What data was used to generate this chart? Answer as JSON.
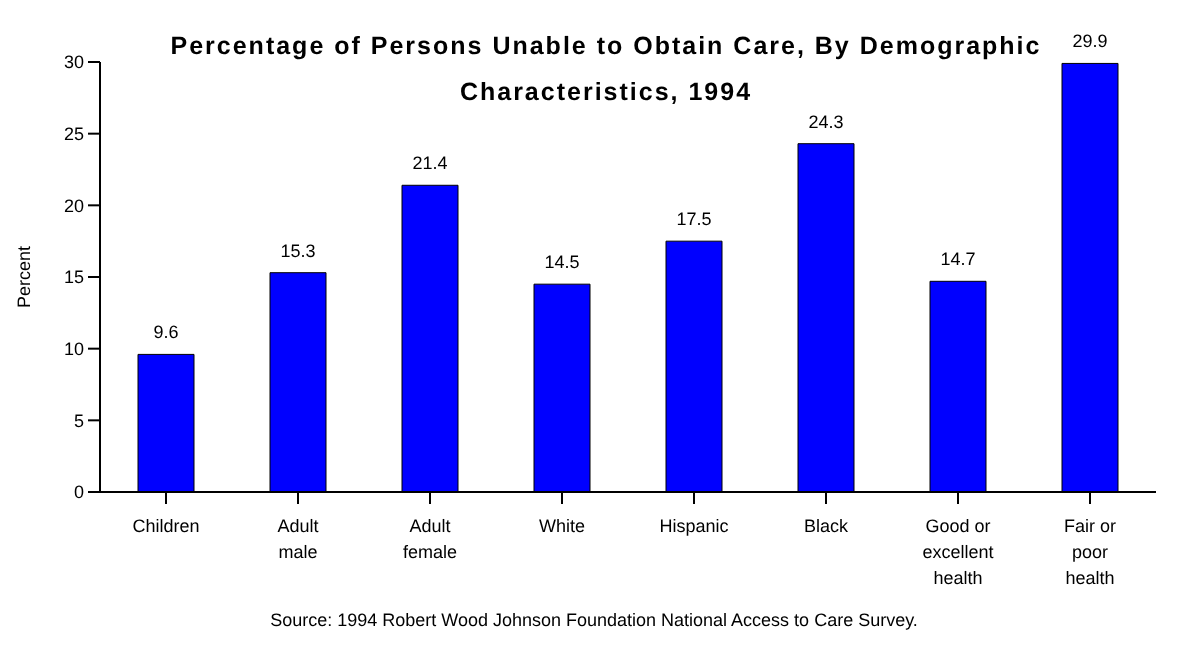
{
  "chart_data": {
    "type": "bar",
    "title": "Percentage of Persons Unable to Obtain Care, By Demographic Characteristics, 1994",
    "ylabel": "Percent",
    "categories": [
      "Children",
      "Adult male",
      "Adult female",
      "White",
      "Hispanic",
      "Black",
      "Good or excellent health",
      "Fair or poor health"
    ],
    "values": [
      9.6,
      15.3,
      21.4,
      14.5,
      17.5,
      24.3,
      14.7,
      29.9
    ],
    "color": "#0000ff",
    "ylim": [
      0,
      30
    ],
    "yticks": [
      0,
      5,
      10,
      15,
      20,
      25,
      30
    ],
    "grid": false,
    "legend": false,
    "data_labels": true,
    "annotations": [
      "Source: 1994 Robert Wood Johnson Foundation National Access to Care Survey."
    ]
  }
}
